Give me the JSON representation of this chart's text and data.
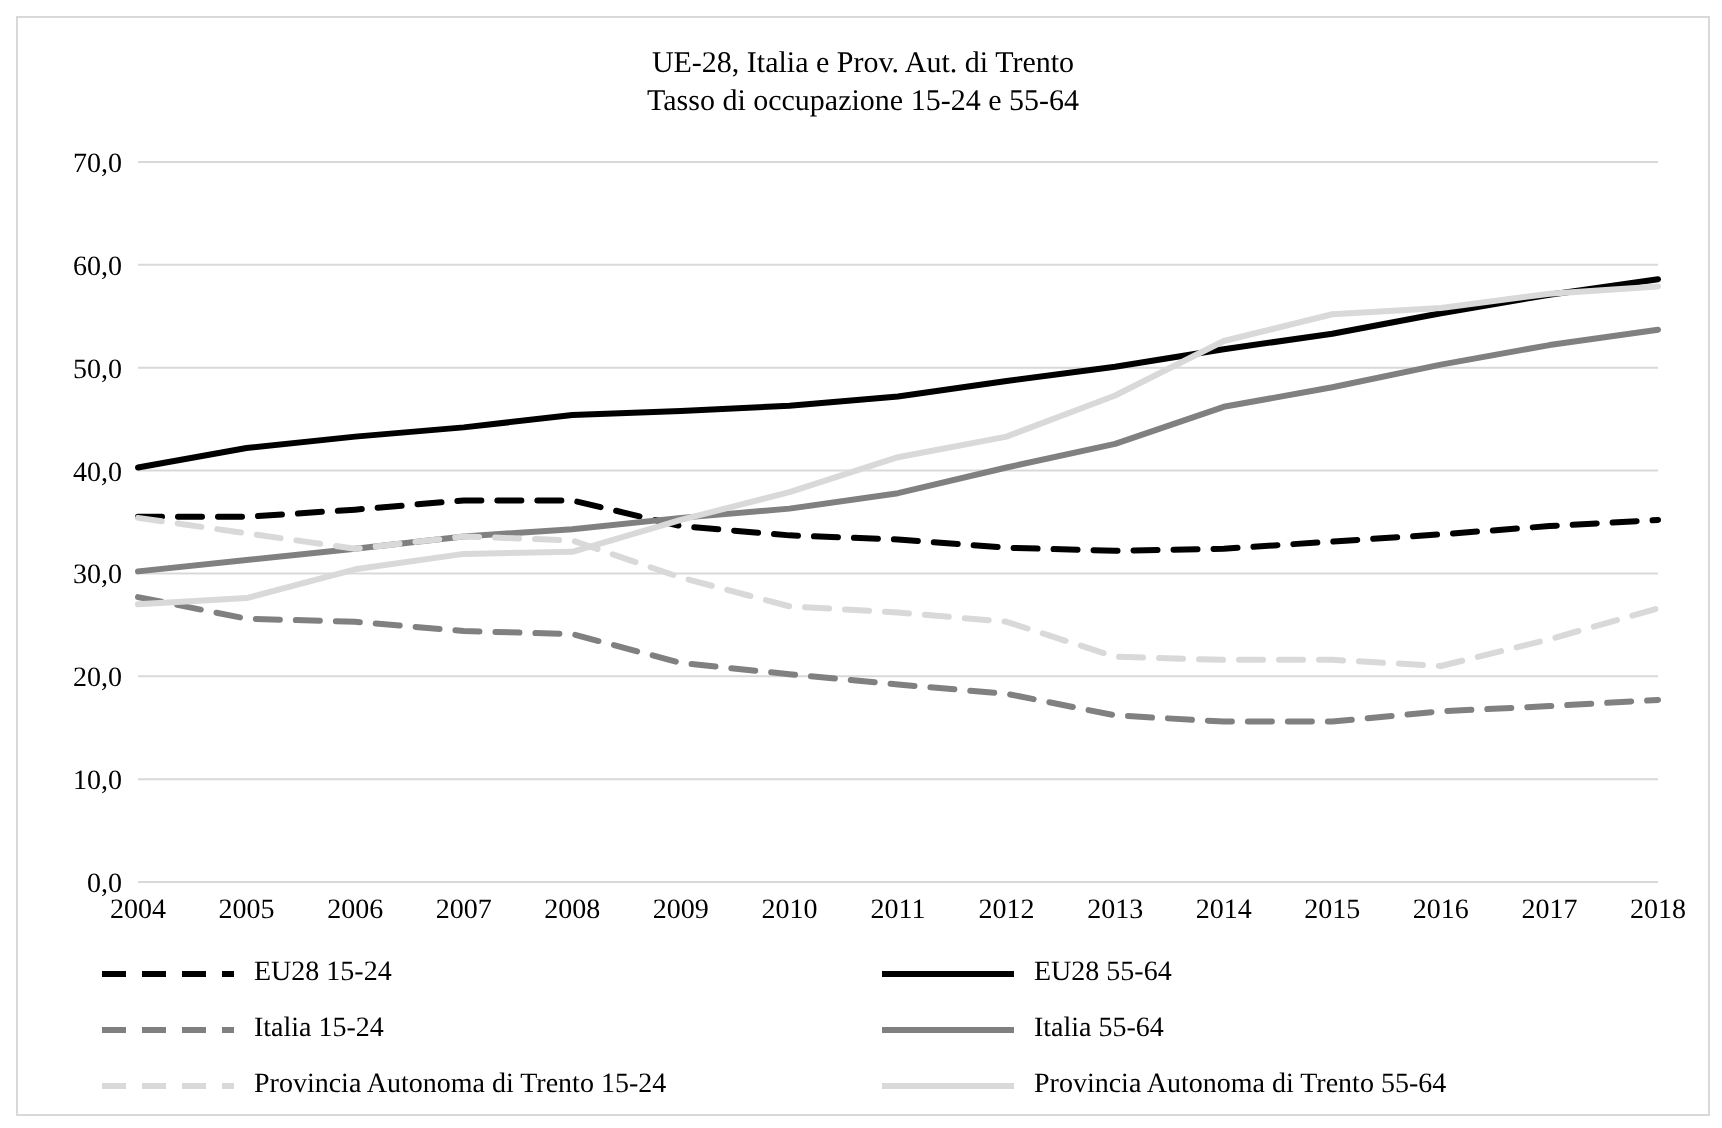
{
  "chart_data": {
    "type": "line",
    "title": "UE-28, Italia e Prov. Aut. di Trento",
    "subtitle": "Tasso di occupazione 15-24 e 55-64",
    "categories": [
      "2004",
      "2005",
      "2006",
      "2007",
      "2008",
      "2009",
      "2010",
      "2011",
      "2012",
      "2013",
      "2014",
      "2015",
      "2016",
      "2017",
      "2018"
    ],
    "ylim": [
      0,
      70
    ],
    "yticks": [
      {
        "value": 0,
        "label": "0,0"
      },
      {
        "value": 10,
        "label": "10,0"
      },
      {
        "value": 20,
        "label": "20,0"
      },
      {
        "value": 30,
        "label": "30,0"
      },
      {
        "value": 40,
        "label": "40,0"
      },
      {
        "value": 50,
        "label": "50,0"
      },
      {
        "value": 60,
        "label": "60,0"
      },
      {
        "value": 70,
        "label": "70,0"
      }
    ],
    "grid": "y",
    "legend": "bottom",
    "marker": "none",
    "series": [
      {
        "name": "EU28 15-24",
        "color": "#000000",
        "line_style": "dashed",
        "values": [
          35.5,
          35.5,
          36.2,
          37.1,
          37.1,
          34.6,
          33.7,
          33.3,
          32.5,
          32.2,
          32.4,
          33.1,
          33.8,
          34.6,
          35.2
        ]
      },
      {
        "name": "EU28 55-64",
        "color": "#000000",
        "line_style": "solid",
        "values": [
          40.3,
          42.2,
          43.3,
          44.2,
          45.4,
          45.8,
          46.3,
          47.2,
          48.7,
          50.1,
          51.8,
          53.3,
          55.3,
          57.1,
          58.6
        ]
      },
      {
        "name": "Italia 15-24",
        "color": "#808080",
        "line_style": "dashed",
        "values": [
          27.7,
          25.6,
          25.3,
          24.4,
          24.1,
          21.3,
          20.2,
          19.2,
          18.3,
          16.2,
          15.6,
          15.6,
          16.6,
          17.1,
          17.7
        ]
      },
      {
        "name": "Italia 55-64",
        "color": "#808080",
        "line_style": "solid",
        "values": [
          30.2,
          31.3,
          32.4,
          33.6,
          34.3,
          35.4,
          36.3,
          37.8,
          40.3,
          42.6,
          46.2,
          48.1,
          50.3,
          52.2,
          53.7
        ]
      },
      {
        "name": "Provincia Autonoma di Trento 15-24",
        "color": "#d9d9d9",
        "line_style": "dashed",
        "values": [
          35.4,
          33.9,
          32.4,
          33.6,
          33.2,
          29.6,
          26.8,
          26.2,
          25.3,
          21.9,
          21.6,
          21.6,
          21.0,
          23.6,
          26.6
        ]
      },
      {
        "name": "Provincia Autonoma di Trento 55-64",
        "color": "#d9d9d9",
        "line_style": "solid",
        "values": [
          27.0,
          27.6,
          30.4,
          31.9,
          32.1,
          35.2,
          37.9,
          41.3,
          43.3,
          47.3,
          52.6,
          55.2,
          55.8,
          57.2,
          57.9
        ]
      }
    ]
  }
}
